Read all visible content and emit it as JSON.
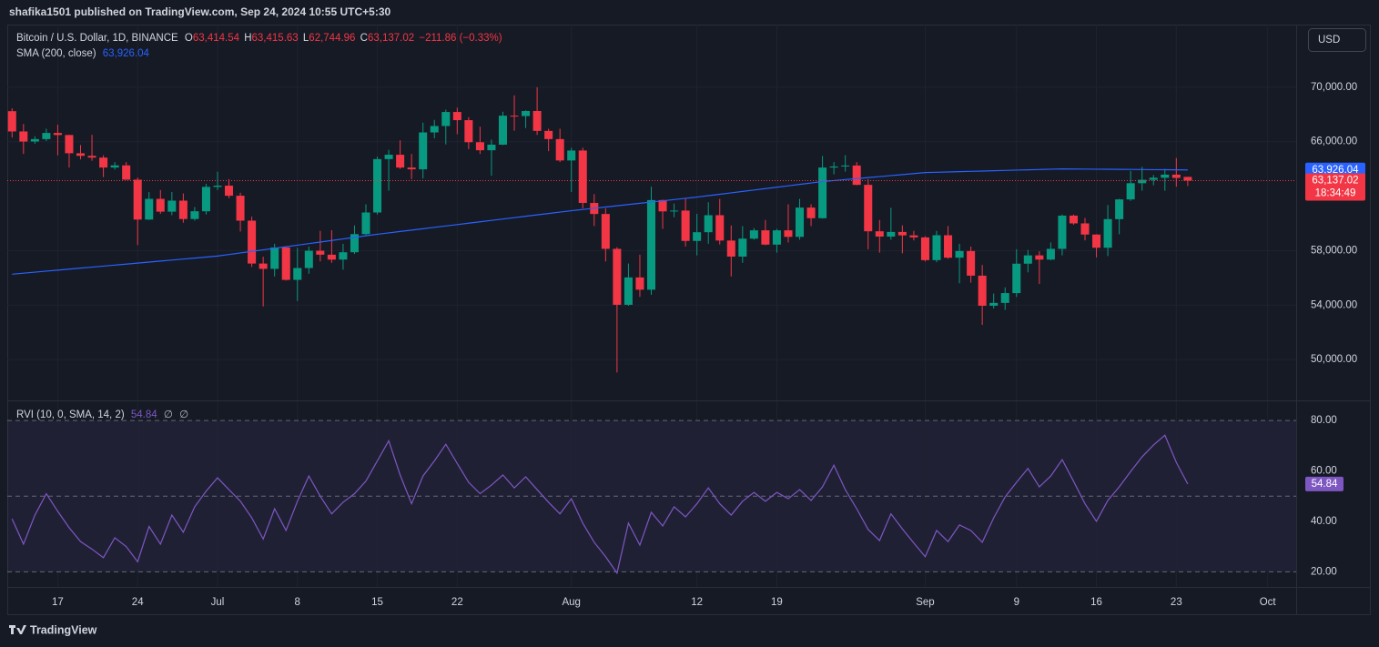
{
  "header": "shafika1501 published on TradingView.com, Sep 24, 2024 10:55 UTC+5:30",
  "currency": "USD",
  "footer_logo": "TradingView",
  "chart_data": [
    {
      "type": "candlestick",
      "title": "Bitcoin / U.S. Dollar, 1D, BINANCE",
      "status": [
        {
          "key": "O",
          "text": "63,414.54"
        },
        {
          "key": "H",
          "text": "63,415.63"
        },
        {
          "key": "L",
          "text": "62,744.96"
        },
        {
          "key": "C",
          "text": "63,137.02"
        }
      ],
      "change": "−211.86 (−0.33%)",
      "countdown": "18:34:49",
      "up_color": "#089981",
      "down_color": "#f23645",
      "grid": true,
      "price_line": true,
      "categories": [
        "Jun 13",
        "Jun 14",
        "Jun 15",
        "Jun 16",
        "Jun 17",
        "Jun 18",
        "Jun 19",
        "Jun 20",
        "Jun 21",
        "Jun 22",
        "Jun 23",
        "Jun 24",
        "Jun 25",
        "Jun 26",
        "Jun 27",
        "Jun 28",
        "Jun 29",
        "Jun 30",
        "Jul 1",
        "Jul 2",
        "Jul 3",
        "Jul 4",
        "Jul 5",
        "Jul 6",
        "Jul 7",
        "Jul 8",
        "Jul 9",
        "Jul 10",
        "Jul 11",
        "Jul 12",
        "Jul 13",
        "Jul 14",
        "Jul 15",
        "Jul 16",
        "Jul 17",
        "Jul 18",
        "Jul 19",
        "Jul 20",
        "Jul 21",
        "Jul 22",
        "Jul 23",
        "Jul 24",
        "Jul 25",
        "Jul 26",
        "Jul 27",
        "Jul 28",
        "Jul 29",
        "Jul 30",
        "Jul 31",
        "Aug 1",
        "Aug 2",
        "Aug 3",
        "Aug 4",
        "Aug 5",
        "Aug 6",
        "Aug 7",
        "Aug 8",
        "Aug 9",
        "Aug 10",
        "Aug 11",
        "Aug 12",
        "Aug 13",
        "Aug 14",
        "Aug 15",
        "Aug 16",
        "Aug 17",
        "Aug 18",
        "Aug 19",
        "Aug 20",
        "Aug 21",
        "Aug 22",
        "Aug 23",
        "Aug 24",
        "Aug 25",
        "Aug 26",
        "Aug 27",
        "Aug 28",
        "Aug 29",
        "Aug 30",
        "Aug 31",
        "Sep 1",
        "Sep 2",
        "Sep 3",
        "Sep 4",
        "Sep 5",
        "Sep 6",
        "Sep 7",
        "Sep 8",
        "Sep 9",
        "Sep 10",
        "Sep 11",
        "Sep 12",
        "Sep 13",
        "Sep 14",
        "Sep 15",
        "Sep 16",
        "Sep 17",
        "Sep 18",
        "Sep 19",
        "Sep 20",
        "Sep 21",
        "Sep 22",
        "Sep 23",
        "Sep 24",
        "Sep 25",
        "Sep 26",
        "Sep 27",
        "Sep 28",
        "Sep 29",
        "Sep 30",
        "Oct 1",
        "Oct 2",
        "Oct 3"
      ],
      "open": [
        68240,
        66750,
        66010,
        66190,
        66640,
        66490,
        65150,
        64960,
        64830,
        64100,
        64260,
        63210,
        60280,
        61800,
        60860,
        61670,
        60320,
        60890,
        62680,
        62770,
        62030,
        60200,
        57050,
        56660,
        58230,
        55850,
        56720,
        57990,
        57700,
        57340,
        57880,
        59210,
        60800,
        64720,
        65040,
        64100,
        63970,
        66680,
        67150,
        68180,
        67580,
        65960,
        65370,
        65780,
        67910,
        67880,
        68250,
        66790,
        66190,
        64620,
        65350,
        61500,
        60690,
        58130,
        54020,
        56030,
        55130,
        61710,
        60880,
        60940,
        58710,
        59350,
        60600,
        58740,
        57560,
        58880,
        59490,
        58440,
        59490,
        59010,
        61160,
        60380,
        64100,
        64180,
        64250,
        62830,
        59420,
        59030,
        59370,
        59120,
        58970,
        57300,
        59130,
        57480,
        57970,
        56160,
        53950,
        54160,
        54880,
        57040,
        57650,
        57340,
        58130,
        60570,
        60000,
        59180,
        58210,
        60310,
        61760,
        62950,
        63200,
        63350,
        63580,
        63414.54,
        null,
        null,
        null,
        null,
        null,
        null,
        null,
        null,
        null
      ],
      "high": [
        68450,
        67300,
        66400,
        66950,
        67250,
        66500,
        65750,
        66500,
        65000,
        64500,
        64500,
        63370,
        62300,
        62450,
        62300,
        62200,
        61200,
        62900,
        63800,
        63250,
        62250,
        60500,
        57550,
        58500,
        58300,
        58200,
        58300,
        59450,
        59500,
        58500,
        59850,
        61400,
        64900,
        65400,
        66100,
        65100,
        67400,
        67600,
        68350,
        68500,
        67800,
        67100,
        66150,
        68200,
        69400,
        68300,
        70000,
        66950,
        66950,
        65550,
        65550,
        62150,
        61100,
        58250,
        57050,
        57700,
        62700,
        61750,
        61450,
        61850,
        60700,
        61550,
        61800,
        59850,
        59800,
        59650,
        60250,
        59600,
        61400,
        61800,
        61400,
        64950,
        64500,
        65000,
        64500,
        63250,
        60250,
        61150,
        59850,
        59450,
        59050,
        59450,
        59800,
        58500,
        58300,
        56950,
        54850,
        55300,
        58100,
        58050,
        57950,
        58600,
        60650,
        60650,
        60400,
        59200,
        61350,
        61800,
        63850,
        64150,
        63550,
        64000,
        64800,
        63415.63,
        null,
        null,
        null,
        null,
        null,
        null,
        null,
        null,
        null
      ],
      "low": [
        66300,
        65100,
        65850,
        66050,
        65000,
        64100,
        64700,
        64600,
        63400,
        63950,
        63200,
        58400,
        60250,
        60700,
        60600,
        60050,
        60200,
        60650,
        62450,
        61850,
        59400,
        56800,
        53900,
        56100,
        55800,
        54300,
        56300,
        57200,
        57100,
        56600,
        57750,
        59150,
        60650,
        62400,
        64000,
        63250,
        63300,
        66250,
        65800,
        66550,
        65450,
        65100,
        63500,
        65750,
        66800,
        67000,
        66500,
        65300,
        64500,
        62300,
        61100,
        59800,
        57200,
        49050,
        53950,
        54600,
        54750,
        59600,
        60450,
        58300,
        57650,
        58500,
        58450,
        56100,
        57100,
        58800,
        58400,
        57850,
        58600,
        58800,
        59800,
        60350,
        63600,
        63800,
        62800,
        58100,
        57850,
        58800,
        57800,
        58750,
        57200,
        57150,
        57400,
        55600,
        55650,
        52550,
        53750,
        53650,
        54600,
        56400,
        55550,
        57300,
        57650,
        59900,
        58750,
        57500,
        57600,
        59200,
        61650,
        62400,
        62800,
        62400,
        62700,
        62744.96,
        null,
        null,
        null,
        null,
        null,
        null,
        null,
        null,
        null
      ],
      "close": [
        66750,
        66010,
        66190,
        66640,
        66490,
        65150,
        64960,
        64830,
        64100,
        64260,
        63210,
        60280,
        61800,
        60860,
        61670,
        60320,
        60890,
        62680,
        62770,
        62030,
        60200,
        57050,
        56660,
        58230,
        55850,
        56720,
        57990,
        57700,
        57340,
        57880,
        59210,
        60800,
        64720,
        65040,
        64100,
        63970,
        66680,
        67150,
        68180,
        67580,
        65960,
        65370,
        65780,
        67910,
        67880,
        68250,
        66790,
        66190,
        64620,
        65350,
        61500,
        60690,
        58130,
        54020,
        56030,
        55130,
        61710,
        60880,
        60940,
        58710,
        59350,
        60600,
        58740,
        57560,
        58880,
        59490,
        58440,
        59490,
        59010,
        61160,
        60380,
        64100,
        64180,
        64250,
        62830,
        59420,
        59030,
        59370,
        59120,
        58970,
        57300,
        59130,
        57480,
        57970,
        56160,
        53950,
        54160,
        54880,
        57040,
        57650,
        57340,
        58130,
        60570,
        60000,
        59180,
        58210,
        60310,
        61760,
        62950,
        63200,
        63350,
        63580,
        63340,
        63137.02,
        null,
        null,
        null,
        null,
        null,
        null,
        null,
        null,
        null
      ],
      "series": [
        {
          "name": "SMA (200, close)",
          "color": "#2962ff",
          "last_label": "63,926.04",
          "values": [
            56270,
            56344,
            56418,
            56492,
            56566,
            56640,
            56713,
            56787,
            56861,
            56935,
            57009,
            57083,
            57157,
            57231,
            57304,
            57378,
            57452,
            57526,
            57600,
            57714,
            57829,
            57943,
            58057,
            58171,
            58286,
            58400,
            58514,
            58629,
            58743,
            58857,
            58971,
            59086,
            59200,
            59302,
            59404,
            59505,
            59607,
            59709,
            59811,
            59912,
            60014,
            60116,
            60218,
            60319,
            60421,
            60523,
            60625,
            60726,
            60828,
            60930,
            61021,
            61112,
            61203,
            61294,
            61385,
            61475,
            61566,
            61657,
            61748,
            61839,
            61930,
            62034,
            62137,
            62241,
            62345,
            62448,
            62552,
            62655,
            62759,
            62863,
            62966,
            63070,
            63143,
            63217,
            63290,
            63363,
            63437,
            63510,
            63583,
            63657,
            63730,
            63753,
            63775,
            63798,
            63820,
            63843,
            63865,
            63888,
            63910,
            63933,
            63955,
            63978,
            64000,
            63993,
            63987,
            63980,
            63973,
            63966,
            63960,
            63953,
            63946,
            63940,
            63933,
            63926.04,
            null,
            null,
            null,
            null,
            null,
            null,
            null,
            null,
            null
          ]
        }
      ],
      "ylim": [
        47000,
        74600
      ],
      "yticks": [
        {
          "value": 50000,
          "label": "50,000.00"
        },
        {
          "value": 54000,
          "label": "54,000.00"
        },
        {
          "value": 58000,
          "label": "58,000.00"
        },
        {
          "value": 66000,
          "label": "66,000.00"
        },
        {
          "value": 70000,
          "label": "70,000.00"
        }
      ],
      "xticks": [
        {
          "value": "Jun 17",
          "label": "17"
        },
        {
          "value": "Jun 24",
          "label": "24"
        },
        {
          "value": "Jul 1",
          "label": "Jul"
        },
        {
          "value": "Jul 8",
          "label": "8"
        },
        {
          "value": "Jul 15",
          "label": "15"
        },
        {
          "value": "Jul 22",
          "label": "22"
        },
        {
          "value": "Aug 1",
          "label": "Aug"
        },
        {
          "value": "Aug 12",
          "label": "12"
        },
        {
          "value": "Aug 19",
          "label": "19"
        },
        {
          "value": "Sep 1",
          "label": "Sep"
        },
        {
          "value": "Sep 9",
          "label": "9"
        },
        {
          "value": "Sep 16",
          "label": "16"
        },
        {
          "value": "Sep 23",
          "label": "23"
        },
        {
          "value": "Oct 1",
          "label": "Oct"
        }
      ]
    },
    {
      "type": "line",
      "title": "RVI (10, 0, SMA, 14, 2)",
      "flags": [
        "∅",
        "∅"
      ],
      "series": [
        {
          "name": "RVI",
          "color": "#7e57c2",
          "values": [
            41,
            31,
            42.5,
            51,
            44,
            37.5,
            32,
            29,
            25.6,
            33.5,
            30,
            24,
            38,
            31,
            42.5,
            35.7,
            45.8,
            52,
            57.3,
            52.6,
            48,
            41.4,
            33,
            45,
            36.4,
            48,
            58,
            50,
            43,
            47.6,
            51,
            56,
            64,
            72,
            58.4,
            47,
            58,
            64,
            70.6,
            63,
            55.5,
            51,
            54.4,
            58.4,
            53.3,
            57.7,
            52.6,
            47.6,
            43,
            49,
            39.3,
            31.7,
            26,
            19.5,
            39.3,
            30.6,
            43.6,
            38.2,
            45.8,
            41.8,
            47,
            53.3,
            47,
            42.5,
            48,
            51.5,
            48,
            51.5,
            49,
            52.6,
            48.3,
            53.7,
            62.3,
            52.6,
            45,
            36.8,
            32.4,
            43,
            37,
            31.4,
            26,
            36.4,
            32,
            38.6,
            36.4,
            31.7,
            41.4,
            49.7,
            55.5,
            61,
            53.7,
            58,
            64.5,
            55.9,
            47,
            40,
            48.3,
            53.7,
            59.8,
            65.6,
            70.3,
            74.2,
            63.4,
            54.84,
            null,
            null,
            null,
            null,
            null,
            null,
            null,
            null,
            null
          ]
        }
      ],
      "levels": [
        80,
        50,
        20
      ],
      "band": [
        20,
        80
      ],
      "band_color": "#7e57c2",
      "ylim": [
        14,
        88
      ],
      "yticks": [
        {
          "value": 20,
          "label": "20.00"
        },
        {
          "value": 40,
          "label": "40.00"
        },
        {
          "value": 60,
          "label": "60.00"
        },
        {
          "value": 80,
          "label": "80.00"
        }
      ]
    }
  ]
}
